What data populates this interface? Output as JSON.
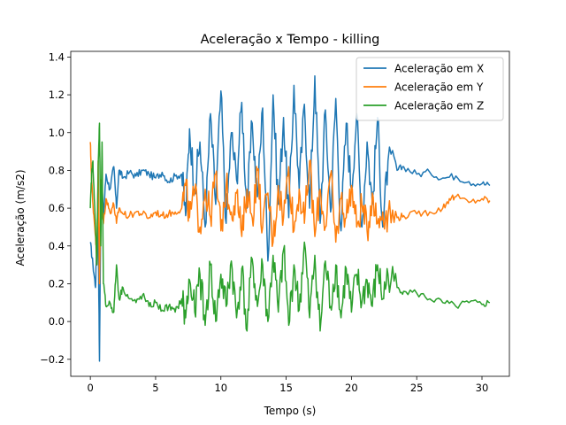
{
  "chart_data": {
    "type": "line",
    "title": "Aceleração x Tempo - killing",
    "xlabel": "Tempo (s)",
    "ylabel": "Aceleração (m/s2)",
    "xlim": [
      -1.5,
      32.1
    ],
    "ylim": [
      -0.29,
      1.43
    ],
    "xticks": [
      0,
      5,
      10,
      15,
      20,
      25,
      30
    ],
    "yticks": [
      -0.2,
      0.0,
      0.2,
      0.4,
      0.6,
      0.8,
      1.0,
      1.2,
      1.4
    ],
    "xtick_labels": [
      "0",
      "5",
      "10",
      "15",
      "20",
      "25",
      "30"
    ],
    "ytick_labels": [
      "−0.2",
      "0.0",
      "0.2",
      "0.4",
      "0.6",
      "0.8",
      "1.0",
      "1.2",
      "1.4"
    ],
    "grid": false,
    "legend_position": "top-right",
    "series": [
      {
        "name": "Aceleração em X",
        "color": "#1f77b4",
        "x": [
          0.0,
          0.2,
          0.4,
          0.5,
          0.6,
          0.7,
          0.8,
          0.9,
          1.0,
          1.2,
          1.5,
          1.8,
          2.0,
          2.2,
          2.5,
          3.0,
          3.5,
          4.0,
          4.5,
          5.0,
          5.5,
          6.0,
          6.5,
          7.0,
          7.3,
          7.6,
          8.0,
          8.4,
          8.8,
          9.2,
          9.6,
          10.0,
          10.4,
          10.8,
          11.2,
          11.6,
          12.0,
          12.4,
          12.8,
          13.2,
          13.6,
          14.0,
          14.4,
          14.8,
          15.2,
          15.6,
          16.0,
          16.4,
          16.8,
          17.2,
          17.6,
          18.0,
          18.4,
          18.8,
          19.2,
          19.6,
          20.0,
          20.4,
          20.8,
          21.2,
          21.6,
          22.0,
          22.4,
          22.8,
          23.5,
          24.0,
          25.0,
          26.0,
          27.0,
          28.0,
          29.0,
          30.0,
          30.6
        ],
        "y": [
          0.42,
          0.3,
          0.18,
          0.45,
          0.5,
          -0.21,
          0.6,
          0.72,
          0.55,
          0.78,
          0.7,
          0.82,
          0.6,
          0.8,
          0.76,
          0.79,
          0.77,
          0.8,
          0.78,
          0.76,
          0.79,
          0.74,
          0.77,
          0.78,
          0.56,
          1.02,
          0.7,
          0.95,
          0.5,
          1.1,
          0.62,
          1.22,
          0.52,
          1.0,
          0.75,
          1.16,
          0.6,
          1.05,
          0.66,
          1.13,
          0.32,
          1.2,
          0.62,
          1.08,
          0.55,
          1.25,
          0.7,
          1.15,
          0.6,
          1.3,
          0.52,
          1.12,
          0.58,
          1.18,
          0.48,
          1.05,
          0.7,
          1.1,
          0.5,
          0.95,
          0.62,
          1.08,
          0.5,
          0.85,
          0.8,
          0.82,
          0.78,
          0.79,
          0.76,
          0.77,
          0.74,
          0.73,
          0.72
        ]
      },
      {
        "name": "Aceleração em Y",
        "color": "#ff7f0e",
        "x": [
          0.0,
          0.1,
          0.2,
          0.4,
          0.5,
          0.6,
          0.7,
          0.8,
          0.9,
          1.0,
          1.2,
          1.5,
          1.8,
          2.0,
          2.2,
          2.5,
          3.0,
          3.5,
          4.0,
          4.5,
          5.0,
          5.5,
          6.0,
          6.5,
          7.0,
          7.3,
          7.6,
          8.0,
          8.4,
          8.8,
          9.2,
          9.6,
          10.0,
          10.4,
          10.8,
          11.2,
          11.6,
          12.0,
          12.4,
          12.8,
          13.2,
          13.6,
          14.0,
          14.4,
          14.8,
          15.2,
          15.6,
          16.0,
          16.4,
          16.8,
          17.2,
          17.6,
          18.0,
          18.4,
          18.8,
          19.2,
          19.6,
          20.0,
          20.4,
          20.8,
          21.2,
          21.6,
          22.0,
          22.4,
          22.8,
          23.5,
          24.0,
          25.0,
          26.0,
          27.0,
          27.5,
          28.0,
          29.0,
          30.0,
          30.6
        ],
        "y": [
          0.95,
          0.75,
          0.62,
          0.45,
          0.3,
          0.85,
          0.2,
          0.75,
          0.55,
          0.52,
          0.65,
          0.58,
          0.62,
          0.52,
          0.6,
          0.57,
          0.56,
          0.58,
          0.57,
          0.55,
          0.58,
          0.56,
          0.57,
          0.58,
          0.6,
          0.72,
          0.55,
          0.68,
          0.5,
          0.7,
          0.55,
          0.78,
          0.48,
          0.72,
          0.58,
          0.68,
          0.45,
          0.7,
          0.55,
          0.8,
          0.5,
          0.68,
          0.42,
          0.72,
          0.55,
          0.82,
          0.48,
          0.7,
          0.52,
          0.85,
          0.45,
          0.7,
          0.5,
          0.78,
          0.42,
          0.65,
          0.55,
          0.72,
          0.5,
          0.62,
          0.48,
          0.68,
          0.52,
          0.58,
          0.56,
          0.55,
          0.56,
          0.57,
          0.58,
          0.6,
          0.65,
          0.66,
          0.63,
          0.65,
          0.64
        ]
      },
      {
        "name": "Aceleração em Z",
        "color": "#2ca02c",
        "x": [
          0.0,
          0.1,
          0.2,
          0.3,
          0.4,
          0.5,
          0.6,
          0.7,
          0.8,
          0.9,
          1.0,
          1.2,
          1.5,
          1.8,
          2.0,
          2.2,
          2.5,
          3.0,
          3.5,
          4.0,
          4.5,
          5.0,
          5.5,
          6.0,
          6.5,
          7.0,
          7.3,
          7.6,
          8.0,
          8.4,
          8.8,
          9.2,
          9.6,
          10.0,
          10.4,
          10.8,
          11.2,
          11.6,
          12.0,
          12.4,
          12.8,
          13.2,
          13.6,
          14.0,
          14.4,
          14.8,
          15.2,
          15.6,
          16.0,
          16.4,
          16.8,
          17.2,
          17.6,
          18.0,
          18.4,
          18.8,
          19.2,
          19.6,
          20.0,
          20.4,
          20.8,
          21.2,
          21.6,
          22.0,
          22.4,
          22.8,
          23.5,
          24.0,
          25.0,
          26.0,
          27.0,
          28.0,
          29.0,
          30.0,
          30.6
        ],
        "y": [
          0.6,
          0.78,
          0.85,
          0.65,
          0.5,
          0.3,
          0.82,
          1.05,
          0.4,
          0.95,
          0.2,
          0.08,
          0.1,
          0.05,
          0.3,
          0.12,
          0.18,
          0.12,
          0.1,
          0.14,
          0.08,
          0.1,
          0.06,
          0.08,
          0.05,
          0.12,
          0.02,
          0.22,
          0.05,
          0.25,
          -0.02,
          0.3,
          0.0,
          0.25,
          0.08,
          0.32,
          0.02,
          0.28,
          -0.05,
          0.33,
          0.08,
          0.3,
          0.0,
          0.35,
          0.05,
          0.38,
          -0.02,
          0.3,
          0.06,
          0.42,
          0.02,
          0.35,
          -0.05,
          0.32,
          0.08,
          0.3,
          0.02,
          0.28,
          0.05,
          0.25,
          0.1,
          0.22,
          0.08,
          0.3,
          0.12,
          0.25,
          0.18,
          0.16,
          0.15,
          0.12,
          0.1,
          0.08,
          0.1,
          0.09,
          0.1
        ]
      }
    ]
  }
}
